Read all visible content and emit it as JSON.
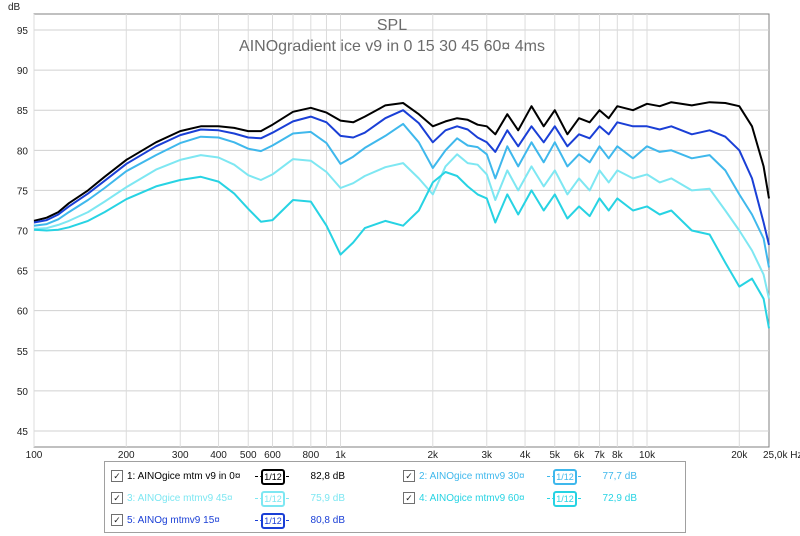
{
  "chart_data": {
    "type": "line",
    "title": "SPL",
    "subtitle": "AINOgradient ice v9 in 0 15 30 45 60¤ 4ms",
    "ylabel": "dB",
    "xscale": "log",
    "xlim": [
      100,
      25000
    ],
    "ylim": [
      43,
      97
    ],
    "grid": true,
    "x_ticks": [
      {
        "v": 100,
        "label": "100"
      },
      {
        "v": 200,
        "label": "200"
      },
      {
        "v": 300,
        "label": "300"
      },
      {
        "v": 400,
        "label": "400"
      },
      {
        "v": 500,
        "label": "500"
      },
      {
        "v": 600,
        "label": "600"
      },
      {
        "v": 800,
        "label": "800"
      },
      {
        "v": 1000,
        "label": "1k"
      },
      {
        "v": 2000,
        "label": "2k"
      },
      {
        "v": 3000,
        "label": "3k"
      },
      {
        "v": 4000,
        "label": "4k"
      },
      {
        "v": 5000,
        "label": "5k"
      },
      {
        "v": 6000,
        "label": "6k"
      },
      {
        "v": 7000,
        "label": "7k"
      },
      {
        "v": 8000,
        "label": "8k"
      },
      {
        "v": 10000,
        "label": "10k"
      },
      {
        "v": 20000,
        "label": "20k"
      },
      {
        "v": 25000,
        "label": "25,0k Hz"
      }
    ],
    "y_ticks": [
      45,
      50,
      55,
      60,
      65,
      70,
      75,
      80,
      85,
      90,
      95
    ],
    "series": [
      {
        "name": "AINOgice mtm v9 in 0¤",
        "color": "#000000",
        "points": [
          [
            100,
            71.2
          ],
          [
            110,
            71.6
          ],
          [
            120,
            72.3
          ],
          [
            130,
            73.4
          ],
          [
            150,
            75.0
          ],
          [
            170,
            76.7
          ],
          [
            200,
            78.8
          ],
          [
            250,
            81.0
          ],
          [
            300,
            82.4
          ],
          [
            350,
            83.0
          ],
          [
            400,
            83.0
          ],
          [
            450,
            82.8
          ],
          [
            500,
            82.4
          ],
          [
            550,
            82.4
          ],
          [
            600,
            83.2
          ],
          [
            700,
            84.8
          ],
          [
            800,
            85.3
          ],
          [
            900,
            84.7
          ],
          [
            1000,
            83.7
          ],
          [
            1100,
            83.5
          ],
          [
            1200,
            84.2
          ],
          [
            1400,
            85.6
          ],
          [
            1600,
            85.9
          ],
          [
            1800,
            84.5
          ],
          [
            2000,
            83.0
          ],
          [
            2200,
            83.6
          ],
          [
            2400,
            84.0
          ],
          [
            2600,
            83.8
          ],
          [
            2800,
            83.2
          ],
          [
            3000,
            83.0
          ],
          [
            3200,
            82.0
          ],
          [
            3500,
            84.5
          ],
          [
            3800,
            82.5
          ],
          [
            4200,
            85.5
          ],
          [
            4600,
            83.0
          ],
          [
            5000,
            85.0
          ],
          [
            5500,
            82.0
          ],
          [
            6000,
            84.0
          ],
          [
            6500,
            83.5
          ],
          [
            7000,
            85.0
          ],
          [
            7500,
            84.0
          ],
          [
            8000,
            85.5
          ],
          [
            9000,
            85.0
          ],
          [
            10000,
            85.8
          ],
          [
            11000,
            85.5
          ],
          [
            12000,
            86.0
          ],
          [
            14000,
            85.6
          ],
          [
            16000,
            86.0
          ],
          [
            18000,
            85.9
          ],
          [
            20000,
            85.5
          ],
          [
            22000,
            83.0
          ],
          [
            24000,
            78.0
          ],
          [
            25000,
            74.0
          ]
        ]
      },
      {
        "name": "AINOg mtmv9 15¤",
        "color": "#1a3fd6",
        "points": [
          [
            100,
            71.0
          ],
          [
            110,
            71.3
          ],
          [
            120,
            72.0
          ],
          [
            130,
            73.0
          ],
          [
            150,
            74.6
          ],
          [
            170,
            76.2
          ],
          [
            200,
            78.3
          ],
          [
            250,
            80.5
          ],
          [
            300,
            81.9
          ],
          [
            350,
            82.6
          ],
          [
            400,
            82.5
          ],
          [
            450,
            82.1
          ],
          [
            500,
            81.6
          ],
          [
            550,
            81.5
          ],
          [
            600,
            82.2
          ],
          [
            700,
            83.6
          ],
          [
            800,
            84.2
          ],
          [
            900,
            83.5
          ],
          [
            1000,
            81.8
          ],
          [
            1100,
            81.6
          ],
          [
            1200,
            82.2
          ],
          [
            1400,
            84.0
          ],
          [
            1600,
            85.0
          ],
          [
            1800,
            83.4
          ],
          [
            2000,
            81.0
          ],
          [
            2200,
            82.5
          ],
          [
            2400,
            83.0
          ],
          [
            2600,
            82.6
          ],
          [
            2800,
            81.6
          ],
          [
            3000,
            81.0
          ],
          [
            3200,
            79.8
          ],
          [
            3500,
            82.5
          ],
          [
            3800,
            80.5
          ],
          [
            4200,
            83.0
          ],
          [
            4600,
            81.0
          ],
          [
            5000,
            83.0
          ],
          [
            5500,
            80.5
          ],
          [
            6000,
            82.0
          ],
          [
            6500,
            81.5
          ],
          [
            7000,
            83.0
          ],
          [
            7500,
            82.0
          ],
          [
            8000,
            83.5
          ],
          [
            9000,
            83.0
          ],
          [
            10000,
            83.0
          ],
          [
            11000,
            82.6
          ],
          [
            12000,
            83.0
          ],
          [
            14000,
            82.0
          ],
          [
            16000,
            82.5
          ],
          [
            18000,
            81.7
          ],
          [
            20000,
            80.0
          ],
          [
            22000,
            76.5
          ],
          [
            24000,
            71.0
          ],
          [
            25000,
            68.2
          ]
        ]
      },
      {
        "name": "AINOgice mtmv9 30¤",
        "color": "#3fb8ec",
        "points": [
          [
            100,
            70.6
          ],
          [
            110,
            70.8
          ],
          [
            120,
            71.4
          ],
          [
            130,
            72.3
          ],
          [
            150,
            73.8
          ],
          [
            170,
            75.3
          ],
          [
            200,
            77.4
          ],
          [
            250,
            79.4
          ],
          [
            300,
            80.9
          ],
          [
            350,
            81.7
          ],
          [
            400,
            81.6
          ],
          [
            450,
            81.0
          ],
          [
            500,
            80.2
          ],
          [
            550,
            79.9
          ],
          [
            600,
            80.6
          ],
          [
            700,
            82.1
          ],
          [
            800,
            82.3
          ],
          [
            900,
            80.9
          ],
          [
            1000,
            78.3
          ],
          [
            1100,
            79.2
          ],
          [
            1200,
            80.3
          ],
          [
            1400,
            81.8
          ],
          [
            1600,
            83.3
          ],
          [
            1800,
            81.0
          ],
          [
            2000,
            77.8
          ],
          [
            2200,
            80.0
          ],
          [
            2400,
            81.5
          ],
          [
            2600,
            80.6
          ],
          [
            2800,
            80.4
          ],
          [
            3000,
            79.5
          ],
          [
            3200,
            76.5
          ],
          [
            3500,
            80.5
          ],
          [
            3800,
            78.0
          ],
          [
            4200,
            81.0
          ],
          [
            4600,
            78.5
          ],
          [
            5000,
            81.0
          ],
          [
            5500,
            78.0
          ],
          [
            6000,
            79.5
          ],
          [
            6500,
            78.5
          ],
          [
            7000,
            80.5
          ],
          [
            7500,
            79.0
          ],
          [
            8000,
            80.5
          ],
          [
            9000,
            79.0
          ],
          [
            10000,
            80.5
          ],
          [
            11000,
            79.8
          ],
          [
            12000,
            80.0
          ],
          [
            14000,
            79.0
          ],
          [
            16000,
            79.4
          ],
          [
            18000,
            77.5
          ],
          [
            20000,
            74.5
          ],
          [
            22000,
            72.0
          ],
          [
            24000,
            69.0
          ],
          [
            25000,
            65.4
          ]
        ]
      },
      {
        "name": "AINOgice mtmv9 45¤",
        "color": "#7ee7f2",
        "points": [
          [
            100,
            70.2
          ],
          [
            110,
            70.3
          ],
          [
            120,
            70.7
          ],
          [
            130,
            71.2
          ],
          [
            150,
            72.3
          ],
          [
            170,
            73.6
          ],
          [
            200,
            75.4
          ],
          [
            250,
            77.6
          ],
          [
            300,
            78.8
          ],
          [
            350,
            79.4
          ],
          [
            400,
            79.1
          ],
          [
            450,
            78.2
          ],
          [
            500,
            76.9
          ],
          [
            550,
            76.3
          ],
          [
            600,
            77.0
          ],
          [
            700,
            78.9
          ],
          [
            800,
            78.7
          ],
          [
            900,
            77.3
          ],
          [
            1000,
            75.3
          ],
          [
            1100,
            75.9
          ],
          [
            1200,
            76.8
          ],
          [
            1400,
            77.9
          ],
          [
            1600,
            78.4
          ],
          [
            1800,
            76.5
          ],
          [
            2000,
            74.5
          ],
          [
            2200,
            78.0
          ],
          [
            2400,
            79.5
          ],
          [
            2600,
            78.4
          ],
          [
            2800,
            78.2
          ],
          [
            3000,
            77.0
          ],
          [
            3200,
            73.8
          ],
          [
            3500,
            77.5
          ],
          [
            3800,
            75.0
          ],
          [
            4200,
            78.0
          ],
          [
            4600,
            75.5
          ],
          [
            5000,
            77.5
          ],
          [
            5500,
            74.5
          ],
          [
            6000,
            76.5
          ],
          [
            6500,
            75.0
          ],
          [
            7000,
            77.5
          ],
          [
            7500,
            76.0
          ],
          [
            8000,
            77.5
          ],
          [
            9000,
            76.5
          ],
          [
            10000,
            77.0
          ],
          [
            11000,
            76.0
          ],
          [
            12000,
            76.5
          ],
          [
            14000,
            75.0
          ],
          [
            16000,
            75.2
          ],
          [
            18000,
            72.5
          ],
          [
            20000,
            70.0
          ],
          [
            22000,
            67.5
          ],
          [
            24000,
            64.5
          ],
          [
            25000,
            61.5
          ]
        ]
      },
      {
        "name": "AINOgice mtmv9 60¤",
        "color": "#27d3e3",
        "points": [
          [
            100,
            70.1
          ],
          [
            110,
            70.0
          ],
          [
            120,
            70.1
          ],
          [
            130,
            70.4
          ],
          [
            150,
            71.2
          ],
          [
            170,
            72.3
          ],
          [
            200,
            73.9
          ],
          [
            250,
            75.5
          ],
          [
            300,
            76.3
          ],
          [
            350,
            76.7
          ],
          [
            400,
            76.1
          ],
          [
            450,
            74.6
          ],
          [
            500,
            72.7
          ],
          [
            550,
            71.1
          ],
          [
            600,
            71.3
          ],
          [
            700,
            73.8
          ],
          [
            800,
            73.6
          ],
          [
            900,
            70.6
          ],
          [
            1000,
            67.0
          ],
          [
            1100,
            68.5
          ],
          [
            1200,
            70.3
          ],
          [
            1400,
            71.2
          ],
          [
            1600,
            70.6
          ],
          [
            1800,
            72.5
          ],
          [
            2000,
            76.0
          ],
          [
            2200,
            77.3
          ],
          [
            2400,
            76.8
          ],
          [
            2600,
            75.5
          ],
          [
            2800,
            74.5
          ],
          [
            3000,
            74.0
          ],
          [
            3200,
            71.0
          ],
          [
            3500,
            74.5
          ],
          [
            3800,
            72.0
          ],
          [
            4200,
            75.0
          ],
          [
            4600,
            72.5
          ],
          [
            5000,
            74.5
          ],
          [
            5500,
            71.5
          ],
          [
            6000,
            73.0
          ],
          [
            6500,
            71.8
          ],
          [
            7000,
            74.0
          ],
          [
            7500,
            72.5
          ],
          [
            8000,
            74.0
          ],
          [
            9000,
            72.5
          ],
          [
            10000,
            73.0
          ],
          [
            11000,
            72.0
          ],
          [
            12000,
            72.5
          ],
          [
            14000,
            70.0
          ],
          [
            16000,
            69.5
          ],
          [
            18000,
            66.0
          ],
          [
            20000,
            63.0
          ],
          [
            22000,
            64.0
          ],
          [
            24000,
            61.5
          ],
          [
            25000,
            57.8
          ]
        ]
      }
    ]
  },
  "legend": [
    {
      "index": "1:",
      "label": "AINOgice mtm v9 in 0¤",
      "smoothing": "1/12",
      "value": "82,8 dB",
      "color": "#000000",
      "checked": "✓"
    },
    {
      "index": "2:",
      "label": "AINOgice mtmv9 30¤",
      "smoothing": "1/12",
      "value": "77,7 dB",
      "color": "#3fb8ec",
      "checked": "✓"
    },
    {
      "index": "3:",
      "label": "AINOgice mtmv9 45¤",
      "smoothing": "1/12",
      "value": "75,9 dB",
      "color": "#7ee7f2",
      "checked": "✓"
    },
    {
      "index": "4:",
      "label": "AINOgice mtmv9 60¤",
      "smoothing": "1/12",
      "value": "72,9 dB",
      "color": "#27d3e3",
      "checked": "✓"
    },
    {
      "index": "5:",
      "label": "AINOg mtmv9 15¤",
      "smoothing": "1/12",
      "value": "80,8 dB",
      "color": "#1a3fd6",
      "checked": "✓"
    }
  ]
}
